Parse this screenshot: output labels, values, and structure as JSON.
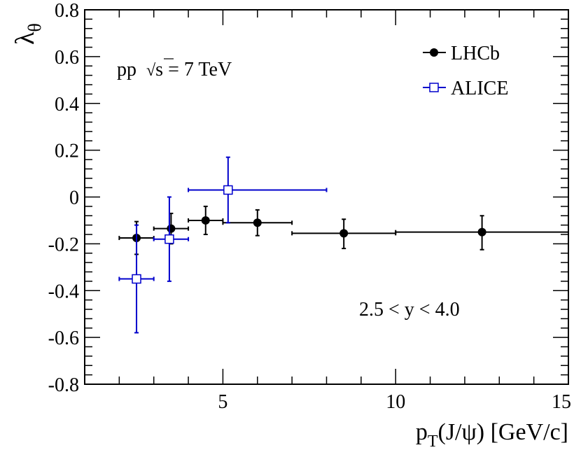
{
  "chart_data": {
    "type": "scatter",
    "xlabel": "p",
    "xlabel_sub": "T",
    "xlabel_rest": "(J/ψ) [GeV/c]",
    "ylabel": "λ",
    "ylabel_sub": "θ",
    "xlim": [
      1,
      15
    ],
    "ylim": [
      -0.8,
      0.8
    ],
    "x_major_ticks": [
      5,
      10,
      15
    ],
    "x_tick_labels": [
      "5",
      "10",
      "15"
    ],
    "y_major_ticks": [
      -0.8,
      -0.6,
      -0.4,
      -0.2,
      0,
      0.2,
      0.4,
      0.6,
      0.8
    ],
    "y_tick_labels": [
      "-0.8",
      "-0.6",
      "-0.4",
      "-0.2",
      "0",
      "0.2",
      "0.4",
      "0.6",
      "0.8"
    ],
    "grid": false,
    "legend_position": "top-right",
    "annotations": {
      "energy_prefix": "pp",
      "energy_root": "√",
      "energy_s": "s",
      "energy_value": " = 7 TeV",
      "rapidity": "2.5 < y < 4.0"
    },
    "series": [
      {
        "name": "LHCb",
        "color": "#000000",
        "marker": "filled-circle",
        "points": [
          {
            "x": 2.5,
            "xlo": 2.0,
            "xhi": 3.0,
            "y": -0.175,
            "ylo": -0.245,
            "yhi": -0.105
          },
          {
            "x": 3.5,
            "xlo": 3.0,
            "xhi": 4.0,
            "y": -0.135,
            "ylo": -0.2,
            "yhi": -0.07
          },
          {
            "x": 4.5,
            "xlo": 4.0,
            "xhi": 5.0,
            "y": -0.1,
            "ylo": -0.16,
            "yhi": -0.04
          },
          {
            "x": 6.0,
            "xlo": 5.0,
            "xhi": 7.0,
            "y": -0.11,
            "ylo": -0.165,
            "yhi": -0.055
          },
          {
            "x": 8.5,
            "xlo": 7.0,
            "xhi": 10.0,
            "y": -0.155,
            "ylo": -0.22,
            "yhi": -0.095
          },
          {
            "x": 12.5,
            "xlo": 10.0,
            "xhi": 15.0,
            "y": -0.15,
            "ylo": -0.225,
            "yhi": -0.08
          }
        ]
      },
      {
        "name": "ALICE",
        "color": "#0000cc",
        "marker": "open-square",
        "points": [
          {
            "x": 2.5,
            "xlo": 2.0,
            "xhi": 3.0,
            "y": -0.35,
            "ylo": -0.58,
            "yhi": -0.12
          },
          {
            "x": 3.45,
            "xlo": 3.0,
            "xhi": 4.0,
            "y": -0.18,
            "ylo": -0.36,
            "yhi": 0.0
          },
          {
            "x": 5.15,
            "xlo": 4.0,
            "xhi": 8.0,
            "y": 0.03,
            "ylo": -0.11,
            "yhi": 0.17
          }
        ]
      }
    ]
  }
}
